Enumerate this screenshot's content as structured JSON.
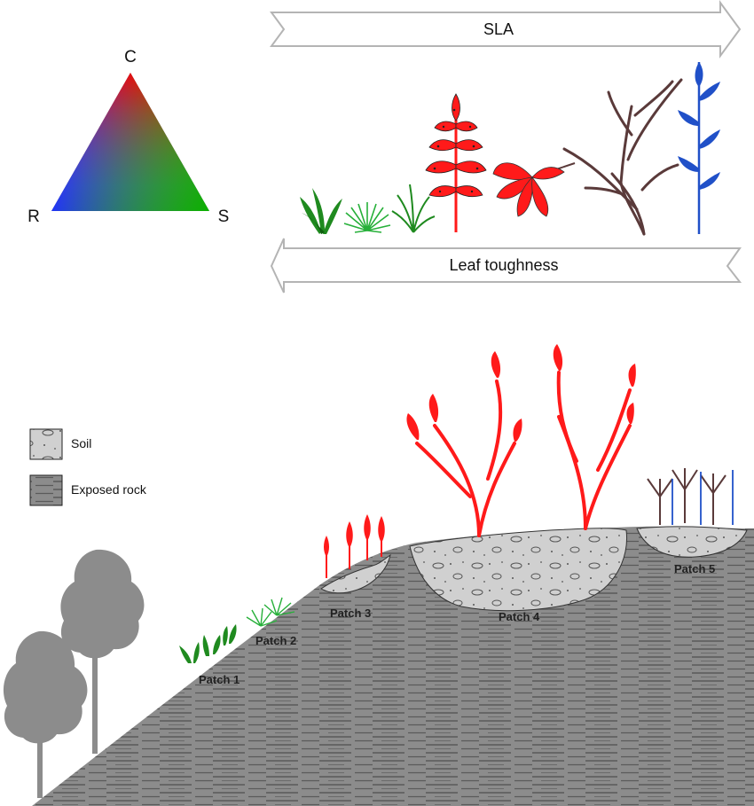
{
  "triangle": {
    "top_label": "C",
    "left_label": "R",
    "right_label": "S",
    "colors": {
      "C": "#ff0000",
      "R": "#2030ff",
      "S": "#0ab000"
    }
  },
  "arrows": {
    "top_label": "SLA",
    "top_direction": "right",
    "bottom_label": "Leaf toughness",
    "bottom_direction": "left"
  },
  "plant_strip": [
    {
      "kind": "green-rosette-icon",
      "color": "#1f8a1f"
    },
    {
      "kind": "green-tussock-icon",
      "color": "#27b03a"
    },
    {
      "kind": "green-grass-icon",
      "color": "#1f8a1f"
    },
    {
      "kind": "red-spotted-herb-icon",
      "color": "#ff2020"
    },
    {
      "kind": "red-palmate-leaf-icon",
      "color": "#ff2020"
    },
    {
      "kind": "brown-shrub-icon",
      "color": "#5a3a3a"
    },
    {
      "kind": "blue-fern-icon",
      "color": "#2050c8"
    }
  ],
  "legend": [
    {
      "label": "Soil",
      "swatch": "soil"
    },
    {
      "label": "Exposed rock",
      "swatch": "rock"
    }
  ],
  "patches": [
    {
      "label": "Patch 1"
    },
    {
      "label": "Patch 2"
    },
    {
      "label": "Patch 3"
    },
    {
      "label": "Patch 4"
    },
    {
      "label": "Patch 5"
    }
  ],
  "colors": {
    "rock": "#8a8a8a",
    "rock_line": "#555555",
    "soil": "#cfcfcf",
    "tree": "#8c8c8c",
    "red_plant": "#ff1a1a",
    "green_plant": "#1f8a1f",
    "brown_plant": "#5a3a3a",
    "blue_plant": "#2050c8"
  }
}
